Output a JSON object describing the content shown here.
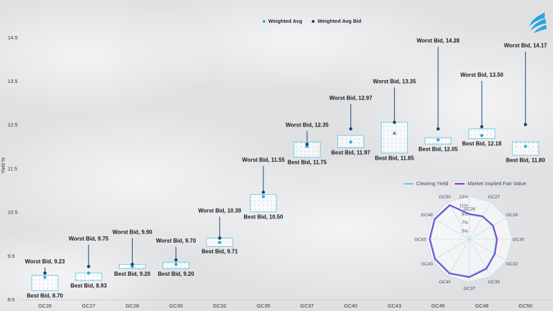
{
  "colors": {
    "weighted_avg": "#3aa8d8",
    "weighted_avg_bid": "#14426e",
    "box_stroke": "#59c3df",
    "clearing_yield": "#5cc8dc",
    "market_implied": "#8c2bd0",
    "logo": "#2aa4dc"
  },
  "logo_icon": "brand-wave-icon",
  "chart_data": [
    {
      "type": "boxplot",
      "ylabel": "Yield %",
      "ylim": [
        8.5,
        14.8
      ],
      "yticks": [
        "8.5",
        "9.5",
        "10.5",
        "11.5",
        "12.5",
        "13.5",
        "14.5"
      ],
      "ytick_values": [
        8.5,
        9.5,
        10.5,
        11.5,
        12.5,
        13.5,
        14.5
      ],
      "legend": {
        "position": "top-center",
        "entries": [
          "Weighted Avg",
          "Weighted Avg Bid"
        ]
      },
      "categories": [
        "GC26",
        "GC27",
        "GC28",
        "GC30",
        "GC32",
        "GC35",
        "GC37",
        "GC40",
        "GC43",
        "GC45",
        "GC48",
        "GC50"
      ],
      "box_top": [
        9.05,
        9.1,
        9.3,
        9.35,
        9.9,
        10.9,
        12.1,
        12.25,
        12.55,
        12.2,
        12.4,
        12.1
      ],
      "weighted_avg": [
        9.0,
        9.1,
        9.25,
        9.3,
        9.8,
        10.85,
        12.0,
        12.1,
        12.3,
        12.15,
        12.25,
        12.0
      ],
      "weighted_avg_bid": [
        9.1,
        9.25,
        9.3,
        9.4,
        9.9,
        10.95,
        12.05,
        12.4,
        12.55,
        12.4,
        12.45,
        12.5
      ],
      "best_bid": [
        8.7,
        8.93,
        9.2,
        9.2,
        9.71,
        10.5,
        11.75,
        11.97,
        11.85,
        12.05,
        12.18,
        11.8
      ],
      "worst_bid": [
        9.23,
        9.75,
        9.9,
        9.7,
        10.39,
        11.55,
        12.35,
        12.97,
        13.35,
        14.28,
        13.5,
        14.17
      ],
      "best_label": [
        "Best Bid, 8.70",
        "Best Bid, 8.93",
        "Best Bid, 9.20",
        "Best Bid, 9.20",
        "Best Bid, 9.71",
        "Best Bid, 10.50",
        "Best Bid, 11.75",
        "Best Bid, 11.97",
        "Best Bid, 11.85",
        "Best Bid, 12.05",
        "Best Bid, 12.18",
        "Best Bid, 11.80"
      ],
      "worst_label": [
        "Worst Bid, 9.23",
        "Worst Bid, 9.75",
        "Worst Bid, 9.90",
        "Worst Bid, 9.70",
        "Worst Bid, 10.39",
        "Worst Bid, 11.55",
        "Worst Bid, 12.35",
        "Worst Bid, 12.97",
        "Worst Bid, 13.35",
        "Worst Bid, 14.28",
        "Worst Bid, 13.50",
        "Worst Bid, 14.17"
      ]
    },
    {
      "type": "radar",
      "axes": [
        "GC26",
        "GC27",
        "GC28",
        "GC30",
        "GC32",
        "GC35",
        "GC37",
        "GC40",
        "GC43",
        "GC45",
        "GC48",
        "GC50"
      ],
      "rings": [
        "5%",
        "7%",
        "9%",
        "11%",
        "13%"
      ],
      "ring_values": [
        5,
        7,
        9,
        11,
        13
      ],
      "rmin": 3,
      "legend": {
        "position": "top",
        "entries": [
          "Clearing Yield",
          "Market Implied Fair Value"
        ]
      },
      "series": [
        {
          "name": "Clearing Yield",
          "values": [
            8.7,
            9.0,
            9.2,
            9.3,
            9.7,
            10.8,
            11.7,
            12.1,
            12.1,
            12.1,
            12.2,
            12.0
          ]
        },
        {
          "name": "Market Implied Fair Value",
          "values": [
            8.9,
            9.2,
            9.4,
            9.5,
            9.9,
            11.0,
            11.9,
            12.3,
            12.3,
            12.3,
            12.4,
            12.2
          ]
        }
      ]
    }
  ]
}
